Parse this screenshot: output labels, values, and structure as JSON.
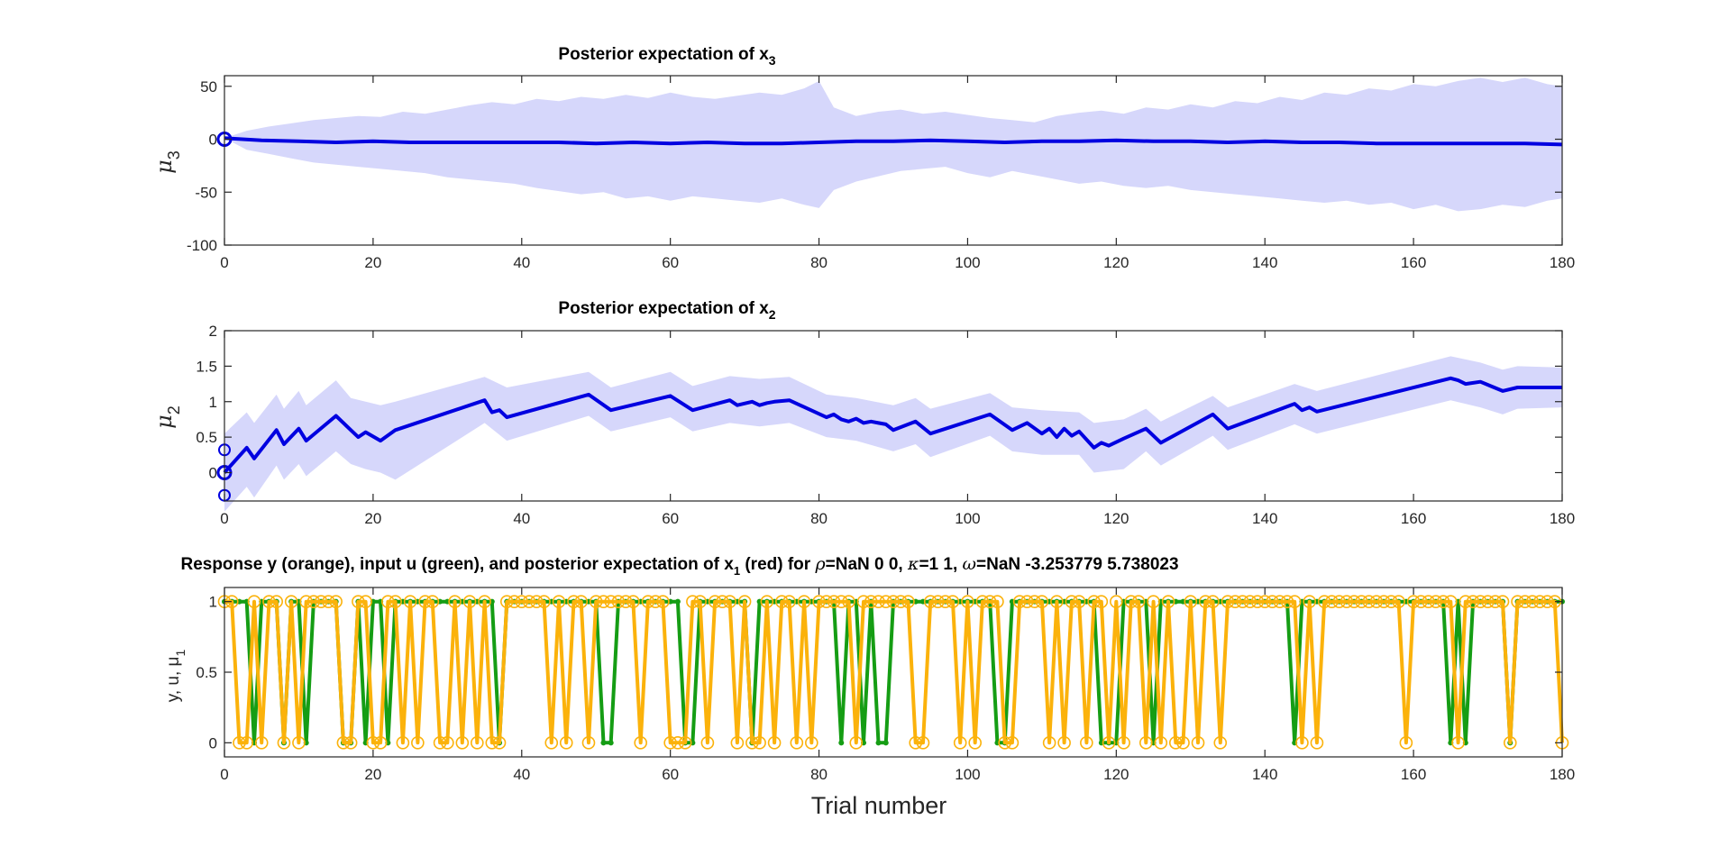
{
  "figure": {
    "xlabel": "Trial number"
  },
  "colors": {
    "mu_line": "#0000e0",
    "band": "#d6d7fb",
    "green": "#159d14",
    "orange": "#fbb20b",
    "axis": "#262626"
  },
  "chart_data": [
    {
      "type": "area",
      "title_main": "Posterior expectation of x",
      "title_sub": "3",
      "ylabel_main": "μ",
      "ylabel_sub": "3",
      "xlim": [
        0,
        180
      ],
      "ylim": [
        -100,
        60
      ],
      "xticks": [
        0,
        20,
        40,
        60,
        80,
        100,
        120,
        140,
        160,
        180
      ],
      "yticks": [
        -100,
        -50,
        0,
        50
      ],
      "series": [
        {
          "role": "mean",
          "x": [
            0,
            5,
            10,
            15,
            20,
            25,
            30,
            35,
            40,
            45,
            50,
            55,
            60,
            65,
            70,
            75,
            80,
            85,
            90,
            95,
            100,
            105,
            110,
            115,
            120,
            125,
            130,
            135,
            140,
            145,
            150,
            155,
            160,
            165,
            170,
            175,
            180
          ],
          "y": [
            1,
            -1,
            -2,
            -3,
            -2,
            -3,
            -3,
            -3,
            -3,
            -3,
            -4,
            -3,
            -4,
            -3,
            -4,
            -4,
            -3,
            -2,
            -2,
            -1,
            -2,
            -3,
            -2,
            -2,
            -1,
            -2,
            -2,
            -3,
            -2,
            -3,
            -3,
            -4,
            -4,
            -4,
            -4,
            -4,
            -5
          ]
        },
        {
          "role": "upper",
          "x": [
            0,
            3,
            6,
            9,
            12,
            15,
            18,
            21,
            24,
            27,
            30,
            33,
            36,
            39,
            42,
            45,
            48,
            51,
            54,
            57,
            60,
            63,
            66,
            69,
            72,
            75,
            78,
            80,
            82,
            85,
            88,
            91,
            94,
            97,
            100,
            103,
            106,
            109,
            112,
            115,
            118,
            121,
            124,
            127,
            130,
            133,
            136,
            139,
            142,
            145,
            148,
            151,
            154,
            157,
            160,
            163,
            166,
            169,
            172,
            175,
            178,
            180
          ],
          "y": [
            1,
            8,
            12,
            15,
            18,
            20,
            22,
            21,
            26,
            24,
            28,
            32,
            35,
            33,
            38,
            36,
            40,
            38,
            42,
            39,
            44,
            40,
            38,
            41,
            44,
            42,
            48,
            55,
            30,
            22,
            26,
            28,
            24,
            26,
            23,
            20,
            18,
            16,
            22,
            25,
            27,
            24,
            30,
            28,
            33,
            30,
            36,
            34,
            40,
            37,
            44,
            42,
            48,
            46,
            52,
            50,
            55,
            58,
            54,
            58,
            52,
            50
          ]
        },
        {
          "role": "lower",
          "x": [
            0,
            3,
            6,
            9,
            12,
            15,
            18,
            21,
            24,
            27,
            30,
            33,
            36,
            39,
            42,
            45,
            48,
            51,
            54,
            57,
            60,
            63,
            66,
            69,
            72,
            75,
            78,
            80,
            82,
            85,
            88,
            91,
            94,
            97,
            100,
            103,
            106,
            109,
            112,
            115,
            118,
            121,
            124,
            127,
            130,
            133,
            136,
            139,
            142,
            145,
            148,
            151,
            154,
            157,
            160,
            163,
            166,
            169,
            172,
            175,
            178,
            180
          ],
          "y": [
            1,
            -10,
            -14,
            -18,
            -22,
            -24,
            -26,
            -28,
            -30,
            -32,
            -36,
            -38,
            -40,
            -42,
            -46,
            -49,
            -52,
            -50,
            -56,
            -54,
            -58,
            -54,
            -56,
            -58,
            -60,
            -56,
            -62,
            -65,
            -48,
            -40,
            -35,
            -30,
            -28,
            -26,
            -32,
            -36,
            -30,
            -34,
            -38,
            -42,
            -40,
            -44,
            -46,
            -44,
            -48,
            -50,
            -52,
            -54,
            -56,
            -58,
            -60,
            -58,
            -62,
            -60,
            -66,
            -62,
            -68,
            -66,
            -62,
            -64,
            -58,
            -56
          ]
        }
      ],
      "initial_points": [
        0
      ]
    },
    {
      "type": "area",
      "title_main": "Posterior expectation of x",
      "title_sub": "2",
      "ylabel_main": "μ",
      "ylabel_sub": "2",
      "xlim": [
        0,
        180
      ],
      "ylim": [
        -0.4,
        2
      ],
      "xticks": [
        0,
        20,
        40,
        60,
        80,
        100,
        120,
        140,
        160,
        180
      ],
      "yticks": [
        0,
        0.5,
        1,
        1.5,
        2
      ],
      "series": [
        {
          "role": "mean",
          "x": [
            0,
            3,
            4,
            7,
            8,
            10,
            11,
            15,
            17,
            18,
            19,
            21,
            23,
            35,
            36,
            37,
            38,
            49,
            52,
            60,
            63,
            68,
            69,
            71,
            72,
            73,
            74,
            76,
            81,
            82,
            83,
            84,
            85,
            86,
            87,
            88,
            89,
            90,
            93,
            95,
            103,
            106,
            108,
            110,
            111,
            112,
            113,
            114,
            115,
            117,
            118,
            119,
            121,
            124,
            126,
            133,
            135,
            144,
            145,
            146,
            147,
            165,
            166,
            167,
            169,
            172,
            174,
            180
          ],
          "y": [
            0,
            0.35,
            0.2,
            0.6,
            0.4,
            0.62,
            0.45,
            0.8,
            0.6,
            0.5,
            0.57,
            0.45,
            0.6,
            1.02,
            0.85,
            0.88,
            0.78,
            1.1,
            0.88,
            1.08,
            0.88,
            1.02,
            0.95,
            1.0,
            0.95,
            0.98,
            1.0,
            1.02,
            0.78,
            0.82,
            0.75,
            0.72,
            0.76,
            0.7,
            0.72,
            0.7,
            0.68,
            0.6,
            0.72,
            0.55,
            0.82,
            0.6,
            0.7,
            0.55,
            0.62,
            0.5,
            0.62,
            0.52,
            0.58,
            0.35,
            0.42,
            0.38,
            0.48,
            0.62,
            0.42,
            0.82,
            0.62,
            0.97,
            0.88,
            0.92,
            0.86,
            1.33,
            1.3,
            1.25,
            1.28,
            1.15,
            1.2,
            1.2
          ]
        },
        {
          "role": "upper",
          "x": [
            0,
            3,
            4,
            7,
            8,
            10,
            11,
            15,
            17,
            19,
            21,
            23,
            35,
            38,
            49,
            52,
            60,
            63,
            68,
            72,
            76,
            81,
            85,
            90,
            93,
            95,
            103,
            106,
            110,
            115,
            117,
            121,
            124,
            126,
            133,
            135,
            144,
            147,
            165,
            169,
            172,
            174,
            180
          ],
          "y": [
            0.55,
            0.85,
            0.7,
            1.1,
            0.9,
            1.15,
            0.95,
            1.3,
            1.05,
            1.0,
            0.95,
            1.0,
            1.35,
            1.2,
            1.42,
            1.2,
            1.42,
            1.22,
            1.36,
            1.32,
            1.35,
            1.1,
            1.05,
            0.95,
            1.05,
            0.9,
            1.12,
            0.92,
            0.88,
            0.85,
            0.7,
            0.75,
            0.9,
            0.72,
            1.08,
            0.92,
            1.25,
            1.15,
            1.64,
            1.55,
            1.45,
            1.5,
            1.48
          ]
        },
        {
          "role": "lower",
          "x": [
            0,
            3,
            4,
            7,
            8,
            10,
            11,
            15,
            17,
            19,
            21,
            23,
            35,
            38,
            49,
            52,
            60,
            63,
            68,
            72,
            76,
            81,
            85,
            90,
            93,
            95,
            103,
            106,
            110,
            115,
            117,
            121,
            124,
            126,
            133,
            135,
            144,
            147,
            165,
            169,
            172,
            174,
            180
          ],
          "y": [
            -0.55,
            -0.2,
            -0.35,
            0.1,
            -0.1,
            0.12,
            -0.05,
            0.3,
            0.12,
            0.05,
            0.0,
            -0.1,
            0.7,
            0.45,
            0.8,
            0.58,
            0.78,
            0.58,
            0.7,
            0.65,
            0.7,
            0.5,
            0.45,
            0.3,
            0.4,
            0.22,
            0.52,
            0.3,
            0.25,
            0.25,
            0.0,
            0.05,
            0.3,
            0.1,
            0.52,
            0.32,
            0.68,
            0.55,
            1.02,
            0.92,
            0.82,
            0.9,
            0.92
          ]
        }
      ],
      "initial_points": [
        0,
        0.32,
        -0.32
      ]
    },
    {
      "type": "line",
      "title": "Response y (orange), input u (green), and posterior expectation of x",
      "title_sub": "1",
      "title_tail1": " (red) for ",
      "rho_label": "ρ",
      "rho_vals": "=NaN    0    0, ",
      "kappa_label": "κ",
      "kappa_vals": "=1  1, ",
      "omega_label": "ω",
      "omega_vals": "=NaN     -3.253779       5.738023",
      "ylabel_main": "y, u, μ",
      "ylabel_sub": "1",
      "xlim": [
        0,
        180
      ],
      "ylim": [
        -0.1,
        1.1
      ],
      "xticks": [
        0,
        20,
        40,
        60,
        80,
        100,
        120,
        140,
        160,
        180
      ],
      "yticks": [
        0,
        0.5,
        1
      ],
      "series": [
        {
          "name": "input u",
          "role": "u",
          "y": [
            1,
            1,
            1,
            1,
            0,
            1,
            1,
            1,
            0,
            1,
            1,
            0,
            1,
            1,
            1,
            1,
            0,
            0,
            1,
            0,
            1,
            1,
            0,
            1,
            1,
            1,
            1,
            1,
            1,
            1,
            1,
            1,
            1,
            1,
            1,
            1,
            1,
            0,
            1,
            1,
            1,
            1,
            1,
            1,
            1,
            1,
            1,
            1,
            1,
            1,
            1,
            0,
            0,
            1,
            1,
            1,
            1,
            1,
            1,
            1,
            1,
            1,
            0,
            0,
            1,
            1,
            1,
            1,
            1,
            1,
            1,
            0,
            1,
            1,
            1,
            1,
            1,
            1,
            1,
            1,
            1,
            1,
            1,
            0,
            1,
            1,
            0,
            1,
            0,
            0,
            1,
            1,
            1,
            1,
            1,
            1,
            1,
            1,
            1,
            1,
            1,
            1,
            1,
            1,
            0,
            0,
            1,
            1,
            1,
            1,
            1,
            1,
            1,
            1,
            1,
            1,
            1,
            1,
            0,
            0,
            0,
            1,
            1,
            1,
            1,
            0,
            1,
            1,
            1,
            1,
            1,
            1,
            1,
            1,
            1,
            1,
            1,
            1,
            1,
            1,
            1,
            1,
            1,
            1,
            0,
            1,
            1,
            1,
            1,
            1,
            1,
            1,
            1,
            1,
            1,
            1,
            1,
            1,
            1,
            1,
            1,
            1,
            1,
            1,
            1,
            0,
            1,
            0,
            1,
            1,
            1,
            1,
            1,
            0,
            1,
            1,
            1,
            1,
            1,
            1,
            1
          ]
        },
        {
          "name": "response y",
          "role": "y",
          "y": [
            1,
            1,
            0,
            0,
            1,
            0,
            1,
            1,
            0,
            1,
            0,
            1,
            1,
            1,
            1,
            1,
            0,
            0,
            1,
            1,
            0,
            0,
            1,
            1,
            0,
            1,
            0,
            1,
            1,
            0,
            0,
            1,
            0,
            1,
            0,
            1,
            0,
            0,
            1,
            1,
            1,
            1,
            1,
            1,
            0,
            1,
            0,
            1,
            1,
            0,
            1,
            1,
            1,
            1,
            1,
            1,
            0,
            1,
            1,
            1,
            0,
            0,
            0,
            1,
            1,
            0,
            1,
            1,
            1,
            0,
            1,
            0,
            0,
            1,
            0,
            1,
            1,
            0,
            1,
            0,
            1,
            1,
            1,
            1,
            1,
            0,
            1,
            1,
            1,
            1,
            1,
            1,
            1,
            0,
            0,
            1,
            1,
            1,
            1,
            0,
            1,
            0,
            1,
            1,
            1,
            0,
            0,
            1,
            1,
            1,
            1,
            0,
            1,
            0,
            1,
            1,
            0,
            1,
            1,
            0,
            1,
            0,
            1,
            1,
            0,
            1,
            0,
            1,
            0,
            0,
            1,
            0,
            1,
            1,
            0,
            1,
            1,
            1,
            1,
            1,
            1,
            1,
            1,
            1,
            1,
            0,
            1,
            0,
            1,
            1,
            1,
            1,
            1,
            1,
            1,
            1,
            1,
            1,
            1,
            0,
            1,
            1,
            1,
            1,
            1,
            1,
            0,
            1,
            1,
            1,
            1,
            1,
            1,
            0,
            1,
            1,
            1,
            1,
            1,
            1,
            0
          ]
        }
      ]
    }
  ]
}
